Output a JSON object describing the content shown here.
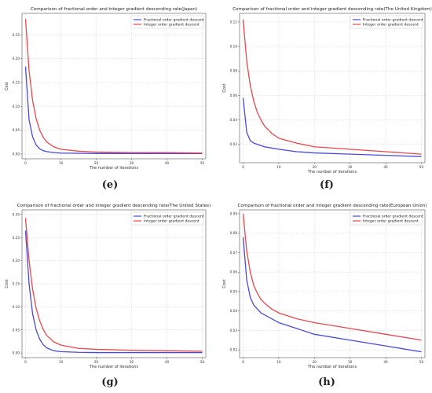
{
  "chart_data": [
    {
      "panel": "e",
      "caption": "(e)",
      "type": "line",
      "title": "Comparison of fractional order and integer gradient descending rate(Japan)",
      "xlabel": "The number of iterations",
      "ylabel": "Cost",
      "xlim": [
        -1,
        51
      ],
      "ylim": [
        -0.01,
        0.295
      ],
      "xticks": [
        0,
        10,
        20,
        30,
        40,
        50
      ],
      "yticks": [
        0.0,
        0.05,
        0.1,
        0.15,
        0.2,
        0.25
      ],
      "ytick_labels": [
        "0.00",
        "0.05",
        "0.10",
        "0.15",
        "0.20",
        "0.25"
      ],
      "legend_position": "top-right",
      "grid": true,
      "x": [
        0,
        1,
        2,
        3,
        4,
        5,
        6,
        8,
        10,
        15,
        20,
        30,
        40,
        50
      ],
      "series": [
        {
          "name": "Fractional order gradient descent",
          "color": "#4a4ad8",
          "values": [
            0.183,
            0.072,
            0.036,
            0.019,
            0.011,
            0.007,
            0.005,
            0.003,
            0.002,
            0.0015,
            0.001,
            0.001,
            0.001,
            0.001
          ]
        },
        {
          "name": "Integer order gradient descent",
          "color": "#e8474c",
          "values": [
            0.283,
            0.175,
            0.112,
            0.074,
            0.05,
            0.035,
            0.025,
            0.015,
            0.01,
            0.006,
            0.004,
            0.003,
            0.003,
            0.002
          ]
        }
      ]
    },
    {
      "panel": "f",
      "caption": "(f)",
      "type": "line",
      "title": "Comparison of fractional order and integer gradient descending rate(The United Kingdom)",
      "xlabel": "The number of iterations",
      "ylabel": "Cost",
      "xlim": [
        -1,
        51
      ],
      "ylim": [
        0.005,
        0.127
      ],
      "xticks": [
        0,
        10,
        20,
        30,
        40,
        50
      ],
      "yticks": [
        0.02,
        0.04,
        0.06,
        0.08,
        0.1,
        0.12
      ],
      "ytick_labels": [
        "0.02",
        "0.04",
        "0.06",
        "0.08",
        "0.10",
        "0.12"
      ],
      "legend_position": "top-right",
      "grid": true,
      "x": [
        0,
        1,
        2,
        3,
        4,
        5,
        6,
        8,
        10,
        15,
        20,
        30,
        40,
        50
      ],
      "series": [
        {
          "name": "Fractional order gradient descent",
          "color": "#4a4ad8",
          "values": [
            0.058,
            0.03,
            0.023,
            0.021,
            0.02,
            0.019,
            0.018,
            0.017,
            0.016,
            0.014,
            0.013,
            0.012,
            0.011,
            0.01
          ]
        },
        {
          "name": "Integer order gradient descent",
          "color": "#e8474c",
          "values": [
            0.122,
            0.088,
            0.068,
            0.055,
            0.046,
            0.04,
            0.035,
            0.029,
            0.025,
            0.021,
            0.018,
            0.016,
            0.014,
            0.012
          ]
        }
      ]
    },
    {
      "panel": "g",
      "caption": "(g)",
      "type": "line",
      "title": "Comparison of fractional order and integer gradient descending rate(The United States)",
      "xlabel": "The number of iterations",
      "ylabel": "Cost",
      "xlim": [
        -1,
        51
      ],
      "ylim": [
        -0.01,
        0.31
      ],
      "xticks": [
        0,
        10,
        20,
        30,
        40,
        50
      ],
      "yticks": [
        0.0,
        0.05,
        0.1,
        0.15,
        0.2,
        0.25,
        0.3
      ],
      "ytick_labels": [
        "0.00",
        "0.05",
        "0.10",
        "0.15",
        "0.20",
        "0.25",
        "0.30"
      ],
      "legend_position": "top-right",
      "grid": true,
      "x": [
        0,
        1,
        2,
        3,
        4,
        5,
        6,
        8,
        10,
        15,
        20,
        30,
        40,
        50
      ],
      "series": [
        {
          "name": "Fractional order gradient descent",
          "color": "#4a4ad8",
          "values": [
            0.265,
            0.15,
            0.085,
            0.05,
            0.03,
            0.018,
            0.011,
            0.005,
            0.003,
            0.0015,
            0.001,
            0.001,
            0.001,
            0.001
          ]
        },
        {
          "name": "Integer order gradient descent",
          "color": "#e8474c",
          "values": [
            0.292,
            0.2,
            0.138,
            0.097,
            0.07,
            0.051,
            0.038,
            0.024,
            0.017,
            0.01,
            0.008,
            0.006,
            0.005,
            0.004
          ]
        }
      ]
    },
    {
      "panel": "h",
      "caption": "(h)",
      "type": "line",
      "title": "Comparison of fractional order and integer gradient descending rate(European Union)",
      "xlabel": "The number of iterations",
      "ylabel": "Cost",
      "xlim": [
        -1,
        51
      ],
      "ylim": [
        0.016,
        0.092
      ],
      "xticks": [
        0,
        10,
        20,
        30,
        40,
        50
      ],
      "yticks": [
        0.02,
        0.03,
        0.04,
        0.05,
        0.06,
        0.07,
        0.08,
        0.09
      ],
      "ytick_labels": [
        "0.02",
        "0.03",
        "0.04",
        "0.05",
        "0.06",
        "0.07",
        "0.08",
        "0.09"
      ],
      "legend_position": "top-right",
      "grid": true,
      "x": [
        0,
        1,
        2,
        3,
        4,
        5,
        6,
        8,
        10,
        15,
        20,
        30,
        40,
        50
      ],
      "series": [
        {
          "name": "Fractional order gradient descent",
          "color": "#4a4ad8",
          "values": [
            0.078,
            0.056,
            0.047,
            0.043,
            0.041,
            0.039,
            0.038,
            0.036,
            0.034,
            0.031,
            0.028,
            0.025,
            0.022,
            0.019
          ]
        },
        {
          "name": "Integer order gradient descent",
          "color": "#e8474c",
          "values": [
            0.09,
            0.071,
            0.06,
            0.053,
            0.049,
            0.046,
            0.044,
            0.041,
            0.039,
            0.036,
            0.034,
            0.031,
            0.028,
            0.025
          ]
        }
      ]
    }
  ]
}
